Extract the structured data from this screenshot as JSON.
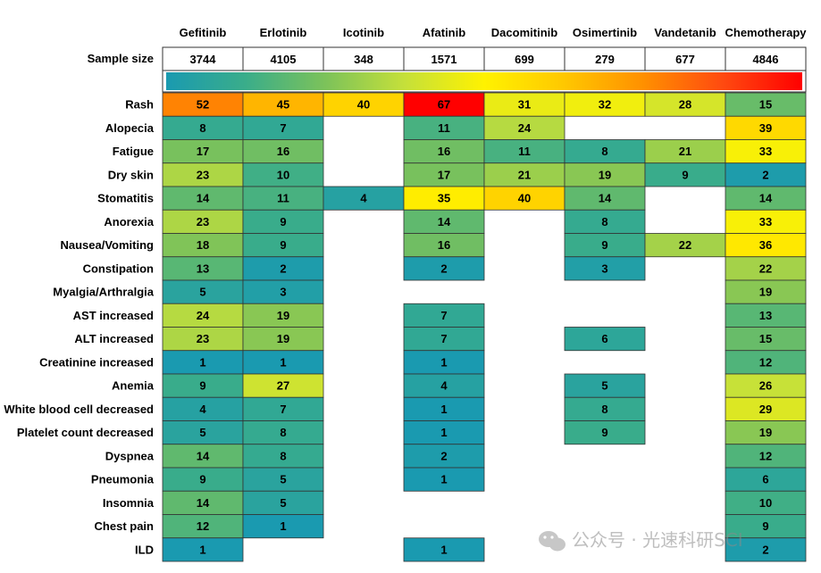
{
  "chart_data": {
    "type": "heatmap",
    "title": "",
    "xlabel": "",
    "ylabel": "",
    "columns": [
      "Gefitinib",
      "Erlotinib",
      "Icotinib",
      "Afatinib",
      "Dacomitinib",
      "Osimertinib",
      "Vandetanib",
      "Chemotherapy"
    ],
    "sample_size_label": "Sample size",
    "sample_sizes": [
      "3744",
      "4105",
      "348",
      "1571",
      "699",
      "279",
      "677",
      "4846"
    ],
    "color_scale": {
      "min": 1,
      "max": 67,
      "colors": [
        "#1a9ab0",
        "#3aad8a",
        "#7cc25a",
        "#c5e03a",
        "#fff200",
        "#ffc800",
        "#ff9000",
        "#ff4a10",
        "#ff0000"
      ]
    },
    "rows": [
      "Rash",
      "Alopecia",
      "Fatigue",
      "Dry skin",
      "Stomatitis",
      "Anorexia",
      "Nausea/Vomiting",
      "Constipation",
      "Myalgia/Arthralgia",
      "AST increased",
      "ALT increased",
      "Creatinine increased",
      "Anemia",
      "White blood cell decreased",
      "Platelet count decreased",
      "Dyspnea",
      "Pneumonia",
      "Insomnia",
      "Chest pain",
      "ILD"
    ],
    "values": [
      [
        52,
        45,
        40,
        67,
        31,
        32,
        28,
        15
      ],
      [
        8,
        7,
        null,
        11,
        24,
        null,
        null,
        39
      ],
      [
        17,
        16,
        null,
        16,
        11,
        8,
        21,
        33
      ],
      [
        23,
        10,
        null,
        17,
        21,
        19,
        9,
        2
      ],
      [
        14,
        11,
        4,
        35,
        40,
        14,
        null,
        14
      ],
      [
        23,
        9,
        null,
        14,
        null,
        8,
        null,
        33
      ],
      [
        18,
        9,
        null,
        16,
        null,
        9,
        22,
        36
      ],
      [
        13,
        2,
        null,
        2,
        null,
        3,
        null,
        22
      ],
      [
        5,
        3,
        null,
        null,
        null,
        null,
        null,
        19
      ],
      [
        24,
        19,
        null,
        7,
        null,
        null,
        null,
        13
      ],
      [
        23,
        19,
        null,
        7,
        null,
        6,
        null,
        15
      ],
      [
        1,
        1,
        null,
        1,
        null,
        null,
        null,
        12
      ],
      [
        9,
        27,
        null,
        4,
        null,
        5,
        null,
        26
      ],
      [
        4,
        7,
        null,
        1,
        null,
        8,
        null,
        29
      ],
      [
        5,
        8,
        null,
        1,
        null,
        9,
        null,
        19
      ],
      [
        14,
        8,
        null,
        2,
        null,
        null,
        null,
        12
      ],
      [
        9,
        5,
        null,
        1,
        null,
        null,
        null,
        6
      ],
      [
        14,
        5,
        null,
        null,
        null,
        null,
        null,
        10
      ],
      [
        12,
        1,
        null,
        null,
        null,
        null,
        null,
        9
      ],
      [
        1,
        null,
        null,
        1,
        null,
        null,
        null,
        2
      ]
    ]
  },
  "watermark": {
    "text": "公众号 · 光速科研SCI",
    "icon": "wechat-icon"
  }
}
